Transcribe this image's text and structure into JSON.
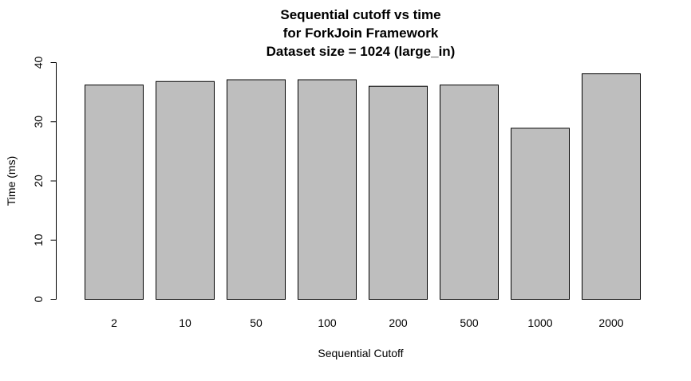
{
  "chart_data": {
    "type": "bar",
    "title_lines": [
      "Sequential cutoff vs time",
      "for ForkJoin Framework",
      "Dataset size = 1024 (large_in)"
    ],
    "xlabel": "Sequential Cutoff",
    "ylabel": "Time (ms)",
    "categories": [
      "2",
      "10",
      "50",
      "100",
      "200",
      "500",
      "1000",
      "2000"
    ],
    "values": [
      36.2,
      36.8,
      37.1,
      37.1,
      36.0,
      36.2,
      28.9,
      38.1
    ],
    "ylim": [
      0,
      40
    ],
    "yticks": [
      "0",
      "10",
      "20",
      "30",
      "40"
    ],
    "grid": false,
    "colors": {
      "bar_fill": "#bebebe",
      "bar_stroke": "#000000",
      "axis": "#000000",
      "text": "#000000",
      "background": "#ffffff"
    }
  }
}
